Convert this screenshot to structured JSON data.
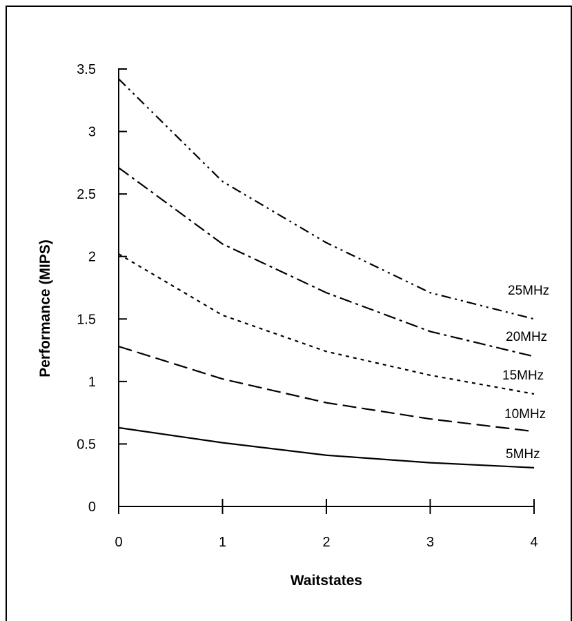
{
  "chart_data": {
    "type": "line",
    "xlabel": "Waitstates",
    "ylabel": "Performance (MIPS)",
    "x": [
      0,
      1,
      2,
      3,
      4
    ],
    "xlim": [
      0,
      4
    ],
    "ylim": [
      0,
      3.5
    ],
    "xticks": [
      0,
      1,
      2,
      3,
      4
    ],
    "yticks": [
      0,
      0.5,
      1,
      1.5,
      2,
      2.5,
      3,
      3.5
    ],
    "grid": false,
    "legend": "inline-right",
    "series": [
      {
        "name": "25MHz",
        "values": [
          3.42,
          2.6,
          2.11,
          1.71,
          1.5
        ],
        "dash": "14 6 3 6 3 6"
      },
      {
        "name": "20MHz",
        "values": [
          2.71,
          2.1,
          1.71,
          1.4,
          1.2
        ],
        "dash": "18 6 4 6"
      },
      {
        "name": "15MHz",
        "values": [
          2.02,
          1.53,
          1.24,
          1.05,
          0.9
        ],
        "dash": "5 6"
      },
      {
        "name": "10MHz",
        "values": [
          1.28,
          1.02,
          0.83,
          0.7,
          0.6
        ],
        "dash": "20 8"
      },
      {
        "name": "5MHz",
        "values": [
          0.63,
          0.51,
          0.41,
          0.35,
          0.31
        ],
        "dash": ""
      }
    ]
  }
}
